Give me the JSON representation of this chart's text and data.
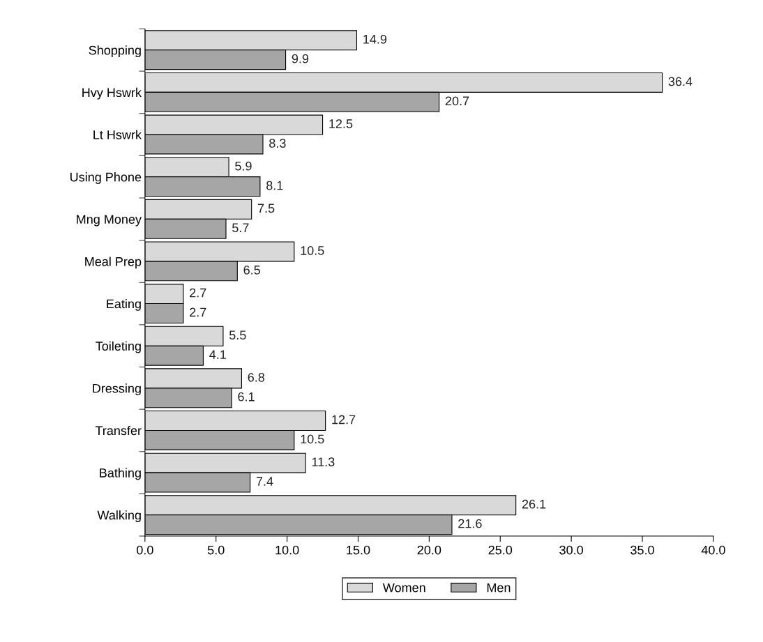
{
  "chart_data": {
    "type": "bar",
    "orientation": "horizontal",
    "categories": [
      "Shopping",
      "Hvy Hswrk",
      "Lt Hswrk",
      "Using Phone",
      "Mng Money",
      "Meal Prep",
      "Eating",
      "Toileting",
      "Dressing",
      "Transfer",
      "Bathing",
      "Walking"
    ],
    "series": [
      {
        "name": "Women",
        "color": "#d9d9d9",
        "values": [
          14.9,
          36.4,
          12.5,
          5.9,
          7.5,
          10.5,
          2.7,
          5.5,
          6.8,
          12.7,
          11.3,
          26.1
        ]
      },
      {
        "name": "Men",
        "color": "#a6a6a6",
        "values": [
          9.9,
          20.7,
          8.3,
          8.1,
          5.7,
          6.5,
          2.7,
          4.1,
          6.1,
          10.5,
          7.4,
          21.6
        ]
      }
    ],
    "xlim": [
      0,
      40
    ],
    "xticks": [
      {
        "value": 0,
        "label": "0.0"
      },
      {
        "value": 5,
        "label": "5.0"
      },
      {
        "value": 10,
        "label": "10.0"
      },
      {
        "value": 15,
        "label": "15.0"
      },
      {
        "value": 20,
        "label": "20.0"
      },
      {
        "value": 25,
        "label": "25.0"
      },
      {
        "value": 30,
        "label": "30.0"
      },
      {
        "value": 35,
        "label": "35.0"
      },
      {
        "value": 40,
        "label": "40.0"
      }
    ],
    "data_labels": true,
    "grid": false,
    "legend": "bottom"
  }
}
